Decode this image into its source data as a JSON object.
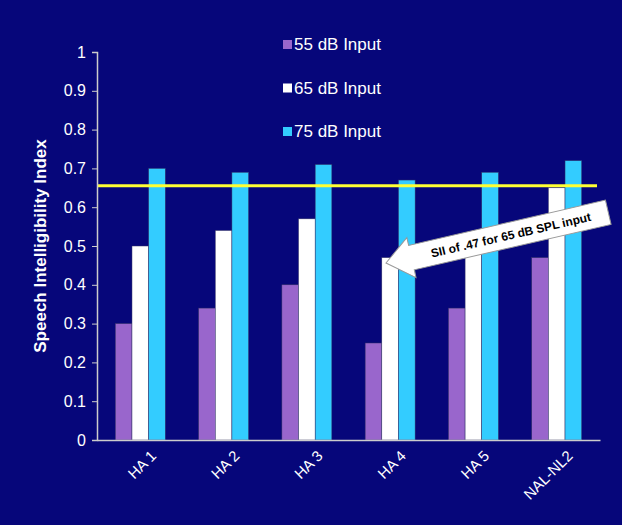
{
  "chart_data": {
    "type": "bar",
    "categories": [
      "HA 1",
      "HA 2",
      "HA 3",
      "HA 4",
      "HA 5",
      "NAL-NL2"
    ],
    "series": [
      {
        "name": "55 dB Input",
        "color": "#9966cc",
        "values": [
          0.3,
          0.34,
          0.4,
          0.25,
          0.34,
          0.47
        ]
      },
      {
        "name": "65 dB Input",
        "color": "#ffffff",
        "values": [
          0.5,
          0.54,
          0.57,
          0.47,
          0.53,
          0.65
        ]
      },
      {
        "name": "75 dB Input",
        "color": "#33ccff",
        "values": [
          0.7,
          0.69,
          0.71,
          0.67,
          0.69,
          0.72
        ]
      }
    ],
    "y_label": "Speech Intelligibility Index",
    "ylim": [
      0,
      1
    ],
    "yticks": [
      0,
      0.1,
      0.2,
      0.3,
      0.4,
      0.5,
      0.6,
      0.7,
      0.8,
      0.9,
      1
    ],
    "grid": false,
    "legend": "top",
    "reference_line": 0.655,
    "annotations": [
      {
        "text": "SII of .47 for 65 dB SPL input"
      }
    ]
  }
}
